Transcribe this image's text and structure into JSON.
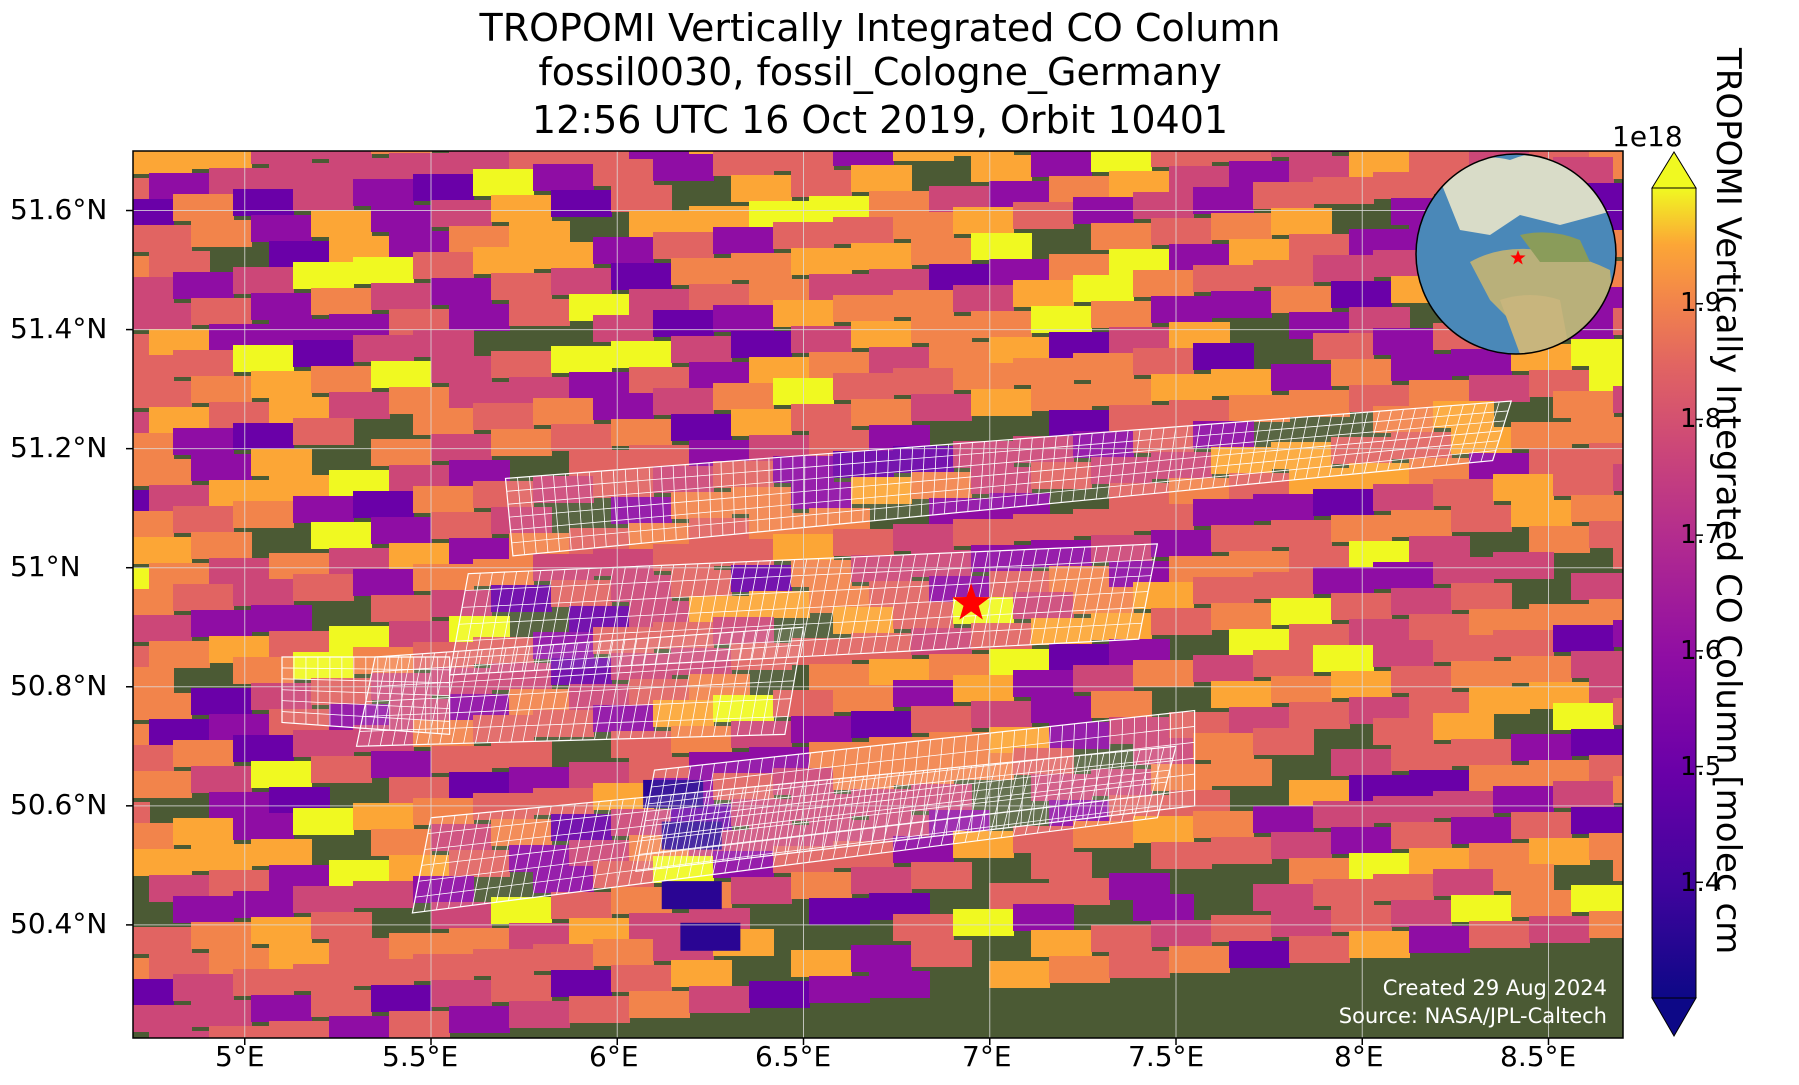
{
  "title": {
    "line1": "TROPOMI Vertically Integrated CO Column",
    "line2": "fossil0030, fossil_Cologne_Germany",
    "line3": "12:56 UTC 16 Oct 2019, Orbit 10401"
  },
  "map": {
    "lon_range": [
      4.7,
      8.7
    ],
    "lat_range": [
      50.21,
      51.7
    ],
    "lat_ticks": [
      {
        "value": 51.6,
        "label": "51.6°N"
      },
      {
        "value": 51.4,
        "label": "51.4°N"
      },
      {
        "value": 51.2,
        "label": "51.2°N"
      },
      {
        "value": 51.0,
        "label": "51°N"
      },
      {
        "value": 50.8,
        "label": "50.8°N"
      },
      {
        "value": 50.6,
        "label": "50.6°N"
      },
      {
        "value": 50.4,
        "label": "50.4°N"
      }
    ],
    "lon_ticks": [
      {
        "value": 5.0,
        "label": "5°E"
      },
      {
        "value": 5.5,
        "label": "5.5°E"
      },
      {
        "value": 6.0,
        "label": "6°E"
      },
      {
        "value": 6.5,
        "label": "6.5°E"
      },
      {
        "value": 7.0,
        "label": "7°E"
      },
      {
        "value": 7.5,
        "label": "7.5°E"
      },
      {
        "value": 8.0,
        "label": "8°E"
      },
      {
        "value": 8.5,
        "label": "8.5°E"
      }
    ],
    "target_marker": {
      "lon": 6.95,
      "lat": 50.94,
      "color": "#ff0000"
    },
    "colormap": "plasma",
    "credit_line1": "Created 29 Aug 2024",
    "credit_line2": "Source: NASA/JPL-Caltech"
  },
  "colorbar": {
    "title": "TROPOMI Vertically Integrated CO Column [molec cm",
    "exponent": "1e18",
    "range": [
      1.3,
      2.0
    ],
    "ticks": [
      {
        "value": 1.9,
        "label": "1.9"
      },
      {
        "value": 1.8,
        "label": "1.8"
      },
      {
        "value": 1.7,
        "label": "1.7"
      },
      {
        "value": 1.6,
        "label": "1.6"
      },
      {
        "value": 1.5,
        "label": "1.5"
      },
      {
        "value": 1.4,
        "label": "1.4"
      }
    ],
    "extend": "both"
  },
  "inset_globe": {
    "marker_color": "#ff0000"
  }
}
